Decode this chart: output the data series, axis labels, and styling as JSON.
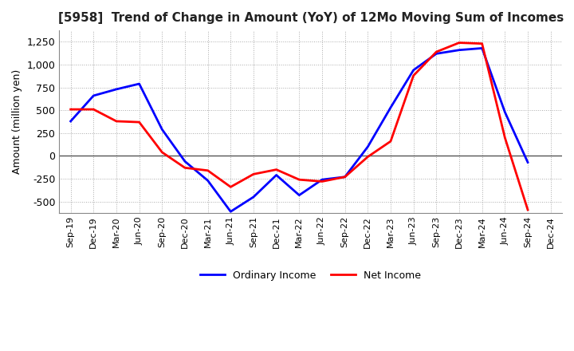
{
  "title": "[5958]  Trend of Change in Amount (YoY) of 12Mo Moving Sum of Incomes",
  "ylabel": "Amount (million yen)",
  "x_labels": [
    "Sep-19",
    "Dec-19",
    "Mar-20",
    "Jun-20",
    "Sep-20",
    "Dec-20",
    "Mar-21",
    "Jun-21",
    "Sep-21",
    "Dec-21",
    "Mar-22",
    "Jun-22",
    "Sep-22",
    "Dec-22",
    "Mar-23",
    "Jun-23",
    "Sep-23",
    "Dec-23",
    "Mar-24",
    "Jun-24",
    "Sep-24",
    "Dec-24"
  ],
  "ordinary_income": [
    380,
    660,
    730,
    790,
    290,
    -60,
    -270,
    -610,
    -450,
    -210,
    -430,
    -260,
    -230,
    100,
    530,
    940,
    1120,
    1160,
    1180,
    480,
    -70,
    null
  ],
  "net_income": [
    510,
    510,
    380,
    370,
    40,
    -130,
    -160,
    -340,
    -200,
    -150,
    -260,
    -280,
    -230,
    -10,
    160,
    880,
    1140,
    1240,
    1230,
    200,
    -590,
    null
  ],
  "ordinary_color": "#0000ff",
  "net_color": "#ff0000",
  "ylim": [
    -625,
    1375
  ],
  "yticks": [
    -500,
    -250,
    0,
    250,
    500,
    750,
    1000,
    1250
  ],
  "background_color": "#ffffff",
  "grid_color": "#aaaaaa",
  "legend_labels": [
    "Ordinary Income",
    "Net Income"
  ]
}
